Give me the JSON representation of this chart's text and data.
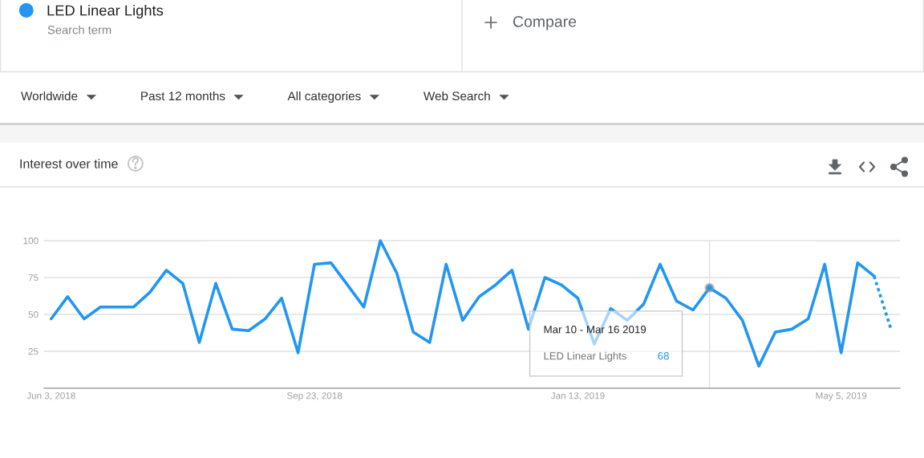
{
  "chart_data": {
    "type": "line",
    "title": "Interest over time",
    "annotations": [
      "Search term",
      "Compare",
      "Worldwide",
      "Past 12 months",
      "All categories",
      "Web Search",
      "Mar 10 - Mar 16 2019",
      "68"
    ],
    "series": [
      {
        "name": "LED Linear Lights",
        "color": "#2196f3",
        "x": [
          "2018-06-03",
          "2018-06-10",
          "2018-06-17",
          "2018-06-24",
          "2018-07-01",
          "2018-07-08",
          "2018-07-15",
          "2018-07-22",
          "2018-07-29",
          "2018-08-05",
          "2018-08-12",
          "2018-08-19",
          "2018-08-26",
          "2018-09-02",
          "2018-09-09",
          "2018-09-16",
          "2018-09-23",
          "2018-09-30",
          "2018-10-07",
          "2018-10-14",
          "2018-10-21",
          "2018-10-28",
          "2018-11-04",
          "2018-11-11",
          "2018-11-18",
          "2018-11-25",
          "2018-12-02",
          "2018-12-09",
          "2018-12-16",
          "2018-12-23",
          "2018-12-30",
          "2019-01-06",
          "2019-01-13",
          "2019-01-20",
          "2019-01-27",
          "2019-02-03",
          "2019-02-10",
          "2019-02-17",
          "2019-02-24",
          "2019-03-03",
          "2019-03-10",
          "2019-03-17",
          "2019-03-24",
          "2019-03-31",
          "2019-04-07",
          "2019-04-14",
          "2019-04-21",
          "2019-04-28",
          "2019-05-05",
          "2019-05-12",
          "2019-05-19"
        ],
        "values": [
          47,
          62,
          47,
          55,
          55,
          55,
          65,
          80,
          71,
          31,
          71,
          40,
          39,
          47,
          61,
          24,
          84,
          85,
          70,
          55,
          100,
          78,
          38,
          31,
          84,
          46,
          62,
          70,
          80,
          40,
          75,
          70,
          61,
          30,
          54,
          46,
          57,
          84,
          59,
          53,
          68,
          61,
          46,
          15,
          38,
          40,
          47,
          84,
          24,
          85,
          76
        ]
      },
      {
        "color": "#2196f3",
        "line_style": "dotted",
        "x": [
          "2019-05-19",
          "2019-05-26"
        ],
        "values": [
          76,
          41
        ]
      },
      {
        "type": "scatter",
        "color": "#2196f3",
        "marker": "circle",
        "x": [
          "2019-03-10"
        ],
        "values": [
          68
        ]
      }
    ],
    "xlim": [
      "2018-05-31",
      "2019-05-30"
    ],
    "xticks": [
      {
        "value": "2018-06-03",
        "label": "Jun 3, 2018"
      },
      {
        "value": "2018-09-23",
        "label": "Sep 23, 2018"
      },
      {
        "value": "2019-01-13",
        "label": "Jan 13, 2019"
      },
      {
        "value": "2019-05-05",
        "label": "May 5, 2019"
      }
    ],
    "ylim": [
      0,
      100
    ],
    "yticks": [
      25,
      50,
      75,
      100
    ],
    "grid": "y",
    "legend": "top left",
    "line_style": "solid",
    "ref_lines": [
      {
        "axis": "x",
        "value": "2019-03-10",
        "color": "#e0e0e0"
      }
    ]
  }
}
